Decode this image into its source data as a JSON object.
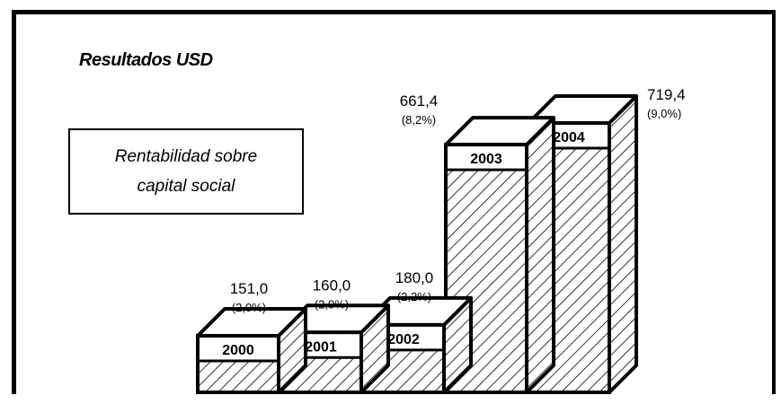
{
  "chart_data": {
    "type": "bar",
    "title": "Resultados USD",
    "legend_text": [
      "Rentabilidad sobre",
      "capital social"
    ],
    "categories": [
      "2000",
      "2001",
      "2002",
      "2003",
      "2004"
    ],
    "values": [
      151.0,
      160.0,
      180.0,
      661.4,
      719.4
    ],
    "value_labels": [
      "151,0",
      "160,0",
      "180,0",
      "661,4",
      "719,4"
    ],
    "rentabilidad_labels": [
      "(2,0%)",
      "(2,0%)",
      "(2,2%)",
      "(8,2%)",
      "(9,0%)"
    ],
    "rentabilidad_pct": [
      2.0,
      2.0,
      2.2,
      8.2,
      9.0
    ],
    "style": "3d-hatched",
    "colors": {
      "fill": "#ffffff",
      "stroke": "#000000",
      "hatch": "#000000"
    }
  }
}
